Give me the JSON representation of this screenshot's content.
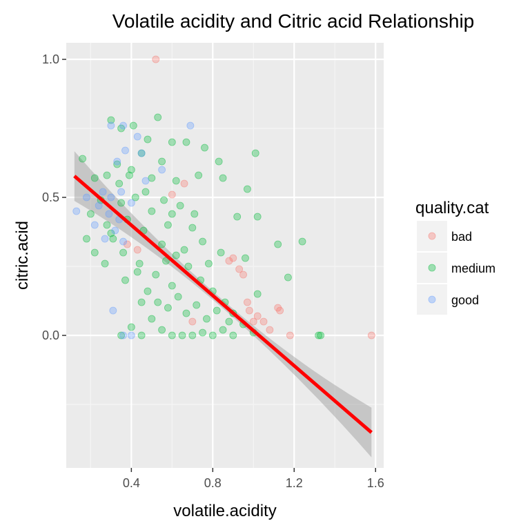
{
  "chart_data": {
    "type": "scatter",
    "title": "Volatile acidity and Citric acid Relationship",
    "xlabel": "volatile.acidity",
    "ylabel": "citric.acid",
    "xlim": [
      0.08,
      1.64
    ],
    "ylim": [
      -0.48,
      1.06
    ],
    "x_ticks": [
      0.4,
      0.8,
      1.2,
      1.6
    ],
    "x_tick_labels": [
      "0.4",
      "0.8",
      "1.2",
      "1.6"
    ],
    "y_ticks": [
      0.0,
      0.5,
      1.0
    ],
    "y_tick_labels": [
      "0.0",
      "0.5",
      "1.0"
    ],
    "grid": true,
    "legend": {
      "title": "quality.cat",
      "position": "right",
      "entries": [
        {
          "label": "bad",
          "color": "#F8766D"
        },
        {
          "label": "medium",
          "color": "#00BA38"
        },
        {
          "label": "good",
          "color": "#619CFF"
        }
      ]
    },
    "series": [
      {
        "name": "bad",
        "color": "#F8766D",
        "points": [
          [
            0.52,
            1.0
          ],
          [
            0.88,
            0.27
          ],
          [
            0.93,
            0.24
          ],
          [
            0.95,
            0.22
          ],
          [
            1.02,
            0.07
          ],
          [
            1.05,
            0.05
          ],
          [
            1.08,
            0.02
          ],
          [
            1.12,
            0.1
          ],
          [
            1.13,
            0.09
          ],
          [
            1.18,
            0.0
          ],
          [
            1.58,
            0.0
          ],
          [
            0.9,
            0.28
          ],
          [
            0.97,
            0.12
          ],
          [
            1.0,
            0.05
          ],
          [
            0.7,
            0.05
          ],
          [
            0.6,
            0.51
          ],
          [
            0.43,
            0.31
          ],
          [
            0.38,
            0.33
          ],
          [
            0.66,
            0.55
          ],
          [
            0.98,
            0.09
          ]
        ]
      },
      {
        "name": "medium",
        "color": "#00BA38",
        "points": [
          [
            0.16,
            0.64
          ],
          [
            0.22,
            0.57
          ],
          [
            0.3,
            0.78
          ],
          [
            0.35,
            0.75
          ],
          [
            0.41,
            0.76
          ],
          [
            0.53,
            0.79
          ],
          [
            0.48,
            0.71
          ],
          [
            0.45,
            0.66
          ],
          [
            0.6,
            0.7
          ],
          [
            0.67,
            0.7
          ],
          [
            0.76,
            0.68
          ],
          [
            1.01,
            0.66
          ],
          [
            0.83,
            0.63
          ],
          [
            0.55,
            0.63
          ],
          [
            0.4,
            0.6
          ],
          [
            0.33,
            0.62
          ],
          [
            0.28,
            0.58
          ],
          [
            0.5,
            0.57
          ],
          [
            0.62,
            0.56
          ],
          [
            0.73,
            0.58
          ],
          [
            0.85,
            0.57
          ],
          [
            0.97,
            0.53
          ],
          [
            0.92,
            0.43
          ],
          [
            1.02,
            0.43
          ],
          [
            1.12,
            0.33
          ],
          [
            1.24,
            0.34
          ],
          [
            1.17,
            0.21
          ],
          [
            1.02,
            0.15
          ],
          [
            0.96,
            0.28
          ],
          [
            0.78,
            0.26
          ],
          [
            0.7,
            0.39
          ],
          [
            0.58,
            0.4
          ],
          [
            0.5,
            0.45
          ],
          [
            0.42,
            0.5
          ],
          [
            0.35,
            0.48
          ],
          [
            0.25,
            0.49
          ],
          [
            0.2,
            0.44
          ],
          [
            0.18,
            0.35
          ],
          [
            0.22,
            0.3
          ],
          [
            0.3,
            0.37
          ],
          [
            0.38,
            0.42
          ],
          [
            0.46,
            0.38
          ],
          [
            0.55,
            0.33
          ],
          [
            0.62,
            0.29
          ],
          [
            0.68,
            0.25
          ],
          [
            0.74,
            0.2
          ],
          [
            0.8,
            0.16
          ],
          [
            0.86,
            0.12
          ],
          [
            0.9,
            0.08
          ],
          [
            0.95,
            0.04
          ],
          [
            0.6,
            0.18
          ],
          [
            0.52,
            0.22
          ],
          [
            0.44,
            0.26
          ],
          [
            0.36,
            0.3
          ],
          [
            0.28,
            0.4
          ],
          [
            0.45,
            0.12
          ],
          [
            0.5,
            0.06
          ],
          [
            0.55,
            0.02
          ],
          [
            0.6,
            0.0
          ],
          [
            0.65,
            0.0
          ],
          [
            0.7,
            0.0
          ],
          [
            0.75,
            0.01
          ],
          [
            0.8,
            0.0
          ],
          [
            0.85,
            0.02
          ],
          [
            0.9,
            0.0
          ],
          [
            0.58,
            0.1
          ],
          [
            0.63,
            0.14
          ],
          [
            0.67,
            0.08
          ],
          [
            0.72,
            0.11
          ],
          [
            0.77,
            0.06
          ],
          [
            0.82,
            0.09
          ],
          [
            0.88,
            0.05
          ],
          [
            0.48,
            0.16
          ],
          [
            0.53,
            0.12
          ],
          [
            0.35,
            0.0
          ],
          [
            0.4,
            0.03
          ],
          [
            0.45,
            0.0
          ],
          [
            1.32,
            0.0
          ],
          [
            1.33,
            0.0
          ],
          [
            1.0,
            0.01
          ],
          [
            0.34,
            0.55
          ],
          [
            0.39,
            0.58
          ],
          [
            0.47,
            0.52
          ],
          [
            0.56,
            0.49
          ],
          [
            0.64,
            0.47
          ],
          [
            0.71,
            0.44
          ],
          [
            0.31,
            0.35
          ],
          [
            0.27,
            0.26
          ],
          [
            0.37,
            0.2
          ],
          [
            0.43,
            0.23
          ],
          [
            0.57,
            0.27
          ],
          [
            0.66,
            0.31
          ],
          [
            0.75,
            0.34
          ],
          [
            0.84,
            0.3
          ],
          [
            0.6,
            0.44
          ]
        ]
      },
      {
        "name": "good",
        "color": "#619CFF",
        "points": [
          [
            0.3,
            0.76
          ],
          [
            0.36,
            0.76
          ],
          [
            0.43,
            0.72
          ],
          [
            0.69,
            0.76
          ],
          [
            0.33,
            0.63
          ],
          [
            0.37,
            0.67
          ],
          [
            0.45,
            0.66
          ],
          [
            0.26,
            0.52
          ],
          [
            0.18,
            0.5
          ],
          [
            0.13,
            0.45
          ],
          [
            0.22,
            0.4
          ],
          [
            0.27,
            0.35
          ],
          [
            0.32,
            0.38
          ],
          [
            0.29,
            0.44
          ],
          [
            0.35,
            0.52
          ],
          [
            0.4,
            0.48
          ],
          [
            0.47,
            0.56
          ],
          [
            0.55,
            0.6
          ],
          [
            0.24,
            0.47
          ],
          [
            0.3,
            0.5
          ],
          [
            0.36,
            0.34
          ],
          [
            0.31,
            0.09
          ],
          [
            0.36,
            0.0
          ],
          [
            0.4,
            0.0
          ],
          [
            0.34,
            0.42
          ]
        ]
      }
    ],
    "regression": {
      "type": "linear",
      "color": "#FF0000",
      "x_range": [
        0.12,
        1.58
      ],
      "intercept": 0.6536,
      "slope": -0.6363,
      "confidence_band": true,
      "band_color": "#999999"
    }
  }
}
